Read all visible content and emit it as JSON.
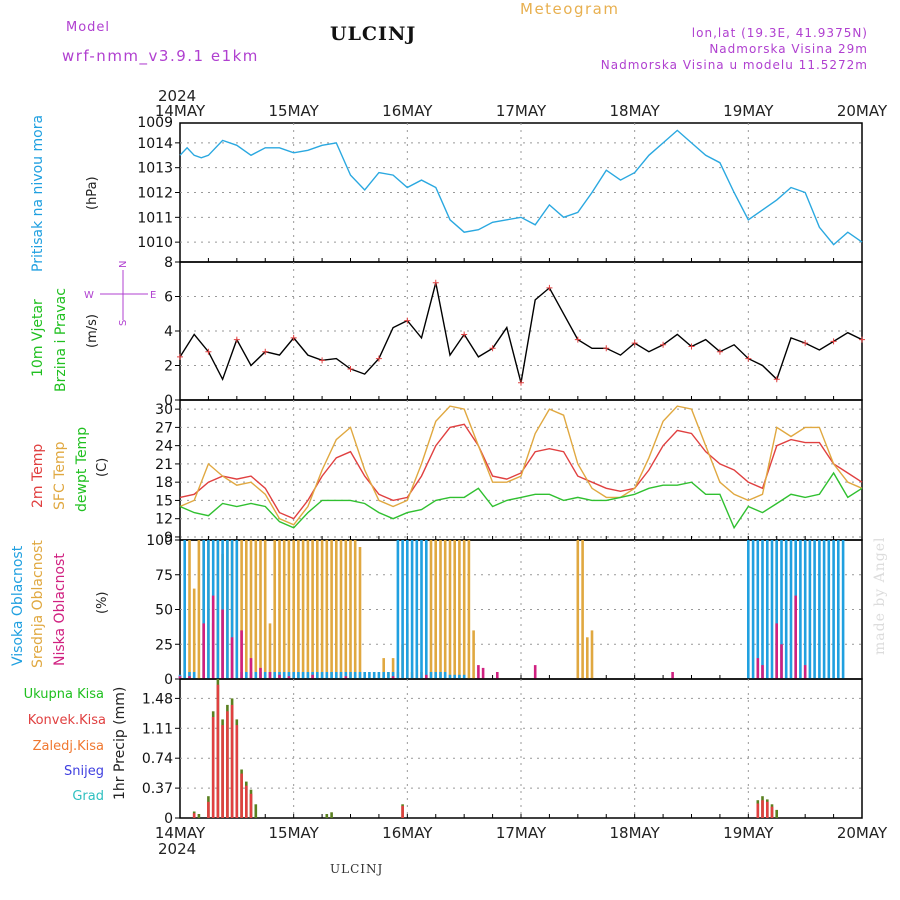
{
  "header": {
    "model_label": "Model",
    "model_name": "wrf-nmm_v3.9.1 e1km",
    "station": "ULCINJ",
    "app_title": "Meteogram",
    "lonlat": "lon,lat (19.3E, 41.9375N)",
    "altitude": "Nadmorska Visina 29m",
    "altitude_model": "Nadmorska Visina u modelu 11.5272m"
  },
  "footer": {
    "station": "ULCINJ",
    "watermark": "made by Angel"
  },
  "axis": {
    "year": "2024",
    "dates": [
      "14MAY",
      "15MAY",
      "16MAY",
      "17MAY",
      "18MAY",
      "19MAY",
      "20MAY"
    ]
  },
  "chart_data": [
    {
      "type": "line",
      "panel": "pressure",
      "ylabel": [
        "Pritisak na nivou mora",
        "(hPa)"
      ],
      "ylim": [
        1009.2,
        1014.8
      ],
      "yticks": [
        1010,
        1011,
        1012,
        1013,
        1014
      ],
      "top_tick_label": "1009",
      "grid": true,
      "series": [
        {
          "name": "Pritisak na nivou mora",
          "color": "#2aa8e0",
          "x": [
            0,
            1.5,
            3,
            4.5,
            6,
            9,
            12,
            15,
            18,
            21,
            24,
            27,
            30,
            33,
            36,
            39,
            42,
            45,
            48,
            51,
            54,
            57,
            60,
            63,
            66,
            69,
            72,
            75,
            78,
            81,
            84,
            87,
            90,
            93,
            96,
            99,
            102,
            105,
            108,
            111,
            114,
            117,
            120,
            123,
            126,
            129,
            132,
            135,
            138,
            141,
            144
          ],
          "values": [
            1013.5,
            1013.8,
            1013.5,
            1013.4,
            1013.5,
            1014.1,
            1013.9,
            1013.5,
            1013.8,
            1013.8,
            1013.6,
            1013.7,
            1013.9,
            1014.0,
            1012.7,
            1012.1,
            1012.8,
            1012.7,
            1012.2,
            1012.5,
            1012.2,
            1010.9,
            1010.4,
            1010.5,
            1010.8,
            1010.9,
            1011.0,
            1010.7,
            1011.5,
            1011.0,
            1011.2,
            1012.0,
            1012.9,
            1012.5,
            1012.8,
            1013.5,
            1014.0,
            1014.5,
            1014.0,
            1013.5,
            1013.2,
            1012.0,
            1010.9,
            1011.3,
            1011.7,
            1012.2,
            1012.0,
            1010.6,
            1009.9,
            1010.4,
            1010.0
          ]
        }
      ]
    },
    {
      "type": "line",
      "panel": "wind",
      "ylabel": [
        "10m Vjetar",
        "Brzina i Pravac",
        "(m/s)"
      ],
      "compass": {
        "north": "N",
        "south": "S",
        "west": "W",
        "east": "E"
      },
      "ylim": [
        0,
        8
      ],
      "yticks": [
        0,
        2,
        4,
        6,
        8
      ],
      "grid": true,
      "series": [
        {
          "name": "10m Vjetar Brzina",
          "color": "#000000",
          "x": [
            0,
            3,
            6,
            9,
            12,
            15,
            18,
            21,
            24,
            27,
            30,
            33,
            36,
            39,
            42,
            45,
            48,
            51,
            54,
            57,
            60,
            63,
            66,
            69,
            72,
            75,
            78,
            81,
            84,
            87,
            90,
            93,
            96,
            99,
            102,
            105,
            108,
            111,
            114,
            117,
            120,
            123,
            126,
            129,
            132,
            135,
            138,
            141,
            144
          ],
          "values": [
            2.5,
            3.8,
            2.8,
            1.2,
            3.5,
            2.0,
            2.8,
            2.6,
            3.6,
            2.6,
            2.3,
            2.4,
            1.8,
            1.5,
            2.4,
            4.2,
            4.6,
            3.6,
            6.8,
            2.6,
            3.8,
            2.5,
            3.0,
            4.2,
            1.0,
            5.8,
            6.5,
            5.0,
            3.5,
            3.0,
            3.0,
            2.6,
            3.3,
            2.8,
            3.2,
            3.8,
            3.1,
            3.5,
            2.8,
            3.2,
            2.4,
            2.0,
            1.2,
            3.6,
            3.3,
            2.9,
            3.4,
            3.9,
            3.5
          ]
        }
      ]
    },
    {
      "type": "line",
      "panel": "temperature",
      "ylabel": [
        "2m Temp",
        "SFC Temp",
        "dewpt Temp",
        "(C)"
      ],
      "ylim": [
        8.5,
        31.5
      ],
      "yticks": [
        9,
        12,
        15,
        18,
        21,
        24,
        27,
        30
      ],
      "grid": true,
      "series": [
        {
          "name": "2m Temp",
          "color": "#e04040",
          "x": [
            0,
            3,
            6,
            9,
            12,
            15,
            18,
            21,
            24,
            27,
            30,
            33,
            36,
            39,
            42,
            45,
            48,
            51,
            54,
            57,
            60,
            63,
            66,
            69,
            72,
            75,
            78,
            81,
            84,
            87,
            90,
            93,
            96,
            99,
            102,
            105,
            108,
            111,
            114,
            117,
            120,
            123,
            126,
            129,
            132,
            135,
            138,
            141,
            144
          ],
          "values": [
            15.5,
            16,
            18,
            19,
            18.5,
            19,
            17,
            13,
            12,
            15,
            19,
            22,
            23,
            19,
            16,
            15,
            15.5,
            19,
            24,
            27,
            27.5,
            24,
            19,
            18.5,
            19.5,
            23,
            23.5,
            23,
            19,
            18,
            17,
            16.5,
            17,
            20,
            24,
            26.5,
            26,
            23,
            21,
            20,
            18,
            17,
            24,
            25,
            24.5,
            24.5,
            21,
            19.5,
            18
          ]
        },
        {
          "name": "SFC Temp",
          "color": "#e0a840",
          "x": [
            0,
            3,
            6,
            9,
            12,
            15,
            18,
            21,
            24,
            27,
            30,
            33,
            36,
            39,
            42,
            45,
            48,
            51,
            54,
            57,
            60,
            63,
            66,
            69,
            72,
            75,
            78,
            81,
            84,
            87,
            90,
            93,
            96,
            99,
            102,
            105,
            108,
            111,
            114,
            117,
            120,
            123,
            126,
            129,
            132,
            135,
            138,
            141,
            144
          ],
          "values": [
            14,
            15,
            21,
            19,
            17.5,
            18,
            16,
            12,
            11,
            14,
            20,
            25,
            27,
            20,
            15,
            14,
            15,
            21,
            28,
            30.5,
            30,
            24,
            18,
            18,
            19,
            26,
            30,
            29,
            21,
            17,
            15.5,
            15.5,
            17,
            22,
            28,
            30.5,
            30,
            24,
            18,
            16,
            15,
            16,
            27,
            25.5,
            27,
            27,
            21,
            18,
            17
          ]
        },
        {
          "name": "dewpt Temp",
          "color": "#30c030",
          "x": [
            0,
            3,
            6,
            9,
            12,
            15,
            18,
            21,
            24,
            27,
            30,
            33,
            36,
            39,
            42,
            45,
            48,
            51,
            54,
            57,
            60,
            63,
            66,
            69,
            72,
            75,
            78,
            81,
            84,
            87,
            90,
            93,
            96,
            99,
            102,
            105,
            108,
            111,
            114,
            117,
            120,
            123,
            126,
            129,
            132,
            135,
            138,
            141,
            144
          ],
          "values": [
            14,
            13,
            12.5,
            14.5,
            14,
            14.5,
            14,
            11.5,
            10.5,
            13,
            15,
            15,
            15,
            14.5,
            13,
            12,
            13,
            13.5,
            15,
            15.5,
            15.5,
            17,
            14,
            15,
            15.5,
            16,
            16,
            15,
            15.5,
            15,
            15,
            15.5,
            16,
            17,
            17.5,
            17.5,
            18,
            16,
            16,
            10.5,
            14,
            13,
            14.5,
            16,
            15.5,
            16,
            19.5,
            15.5,
            17
          ]
        }
      ]
    },
    {
      "type": "bar",
      "panel": "cloud",
      "ylabel": [
        "Visoka Oblacnost",
        "Srednja Oblacnost",
        "Niska Oblacnost",
        "(%)"
      ],
      "ylim": [
        0,
        100
      ],
      "yticks": [
        0,
        25,
        50,
        75,
        100
      ],
      "grid": true,
      "series": [
        {
          "name": "Srednja Oblacnost",
          "color": "#e0a840",
          "x": [
            1,
            2,
            3,
            4,
            5,
            6,
            7,
            8,
            9,
            10,
            11,
            12,
            13,
            14,
            15,
            16,
            17,
            18,
            19,
            20,
            21,
            22,
            23,
            24,
            25,
            26,
            27,
            28,
            29,
            30,
            31,
            32,
            33,
            34,
            35,
            36,
            37,
            38,
            43,
            44,
            45,
            46,
            47,
            48,
            49,
            50,
            51,
            53,
            54,
            55,
            56,
            57,
            58,
            59,
            60,
            61,
            62,
            84,
            85,
            86,
            87,
            126
          ],
          "values": [
            35,
            100,
            65,
            100,
            100,
            100,
            40,
            100,
            90,
            100,
            100,
            100,
            100,
            100,
            100,
            100,
            100,
            100,
            40,
            100,
            100,
            100,
            100,
            100,
            100,
            100,
            100,
            100,
            100,
            100,
            100,
            100,
            100,
            100,
            100,
            100,
            100,
            95,
            15,
            5,
            15,
            5,
            25,
            40,
            5,
            10,
            5,
            100,
            100,
            100,
            100,
            100,
            100,
            100,
            100,
            100,
            35,
            100,
            100,
            30,
            35,
            100
          ]
        },
        {
          "name": "Visoka Oblacnost",
          "color": "#20a0e0",
          "x": [
            0,
            1,
            2,
            3,
            5,
            6,
            7,
            8,
            9,
            10,
            11,
            12,
            13,
            14,
            15,
            16,
            17,
            18,
            19,
            20,
            21,
            22,
            23,
            24,
            25,
            26,
            27,
            28,
            29,
            30,
            31,
            32,
            33,
            34,
            35,
            36,
            37,
            38,
            39,
            40,
            41,
            42,
            43,
            44,
            45,
            46,
            47,
            48,
            49,
            50,
            51,
            52,
            53,
            54,
            55,
            56,
            57,
            58,
            59,
            60,
            120,
            121,
            122,
            123,
            124,
            125,
            126,
            127,
            128,
            129,
            130,
            131,
            132,
            133,
            134,
            135,
            136,
            137,
            138,
            139,
            140
          ],
          "values": [
            3,
            100,
            5,
            5,
            100,
            100,
            100,
            100,
            100,
            100,
            100,
            100,
            5,
            5,
            5,
            5,
            5,
            5,
            5,
            5,
            5,
            5,
            5,
            5,
            5,
            5,
            5,
            5,
            5,
            5,
            5,
            5,
            5,
            5,
            5,
            5,
            5,
            5,
            5,
            5,
            5,
            5,
            5,
            5,
            5,
            100,
            100,
            100,
            100,
            100,
            100,
            100,
            5,
            5,
            5,
            5,
            3,
            3,
            3,
            3,
            100,
            100,
            100,
            100,
            100,
            100,
            100,
            100,
            100,
            100,
            100,
            100,
            100,
            100,
            100,
            100,
            100,
            100,
            100,
            100,
            100
          ]
        },
        {
          "name": "Niska Oblacnost",
          "color": "#d02080",
          "x": [
            0,
            2,
            5,
            7,
            9,
            11,
            13,
            15,
            17,
            19,
            21,
            23,
            28,
            35,
            45,
            52,
            63,
            64,
            67,
            75,
            104,
            122,
            123,
            126,
            127,
            130,
            132
          ],
          "values": [
            2,
            2,
            40,
            60,
            50,
            30,
            35,
            15,
            8,
            5,
            3,
            2,
            3,
            2,
            2,
            3,
            10,
            8,
            5,
            10,
            5,
            15,
            10,
            40,
            25,
            60,
            10
          ]
        }
      ]
    },
    {
      "type": "bar",
      "panel": "precipitation",
      "ylabel": [
        "1hr Precip (mm)"
      ],
      "legend": [
        "Ukupna Kisa",
        "Konvek.Kisa",
        "Zaledj.Kisa",
        "Snijeg",
        "Grad"
      ],
      "ylim": [
        0,
        1.72
      ],
      "yticks": [
        0,
        0.37,
        0.74,
        1.11,
        1.48
      ],
      "grid": true,
      "series": [
        {
          "name": "Ukupna Kisa",
          "color": "#5a8020",
          "x": [
            3,
            4,
            6,
            7,
            8,
            9,
            10,
            11,
            12,
            13,
            14,
            15,
            16,
            31,
            32,
            47,
            122,
            123,
            124,
            125,
            126
          ],
          "values": [
            0.08,
            0.05,
            0.27,
            1.32,
            1.72,
            1.22,
            1.4,
            1.48,
            1.22,
            0.6,
            0.45,
            0.35,
            0.17,
            0.05,
            0.07,
            0.17,
            0.22,
            0.27,
            0.23,
            0.17,
            0.1
          ]
        },
        {
          "name": "Konvek.Kisa",
          "color": "#e04040",
          "x": [
            3,
            6,
            7,
            8,
            9,
            10,
            11,
            12,
            13,
            14,
            15,
            47,
            122,
            123,
            124,
            125
          ],
          "values": [
            0.06,
            0.2,
            1.25,
            1.65,
            1.15,
            1.32,
            1.4,
            1.15,
            0.55,
            0.4,
            0.3,
            0.15,
            0.18,
            0.22,
            0.2,
            0.14
          ]
        }
      ]
    }
  ]
}
